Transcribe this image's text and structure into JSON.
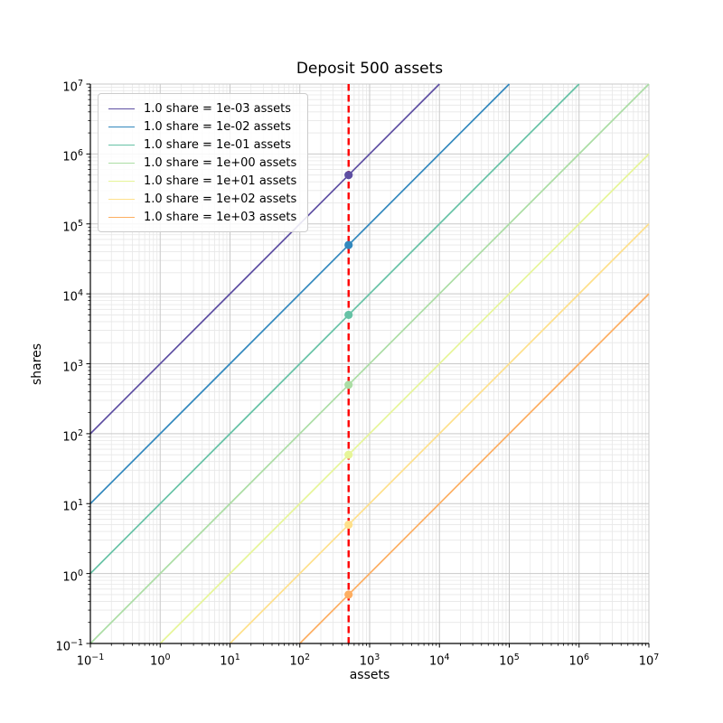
{
  "chart_data": {
    "type": "line",
    "title": "Deposit 500 assets",
    "xlabel": "assets",
    "ylabel": "shares",
    "x_scale": "log",
    "y_scale": "log",
    "xlim": [
      0.1,
      10000000
    ],
    "ylim": [
      0.1,
      10000000
    ],
    "x_tick_exponents": [
      -1,
      0,
      1,
      2,
      3,
      4,
      5,
      6,
      7
    ],
    "y_tick_exponents": [
      -1,
      0,
      1,
      2,
      3,
      4,
      5,
      6,
      7
    ],
    "grid": {
      "major": true,
      "minor": true,
      "major_color": "#c9c9c9",
      "minor_color": "#e7e7e7"
    },
    "legend_position": "upper left",
    "deposit_line": {
      "assets": 500,
      "color": "#ff0000",
      "style": "dashed"
    },
    "series": [
      {
        "label": "1.0 share = 1e-03 assets",
        "assets_per_share": 0.001,
        "color": "#5e4fa2",
        "point": {
          "assets": 500,
          "shares": 500000
        }
      },
      {
        "label": "1.0 share = 1e-02 assets",
        "assets_per_share": 0.01,
        "color": "#3288bd",
        "point": {
          "assets": 500,
          "shares": 50000
        }
      },
      {
        "label": "1.0 share = 1e-01 assets",
        "assets_per_share": 0.1,
        "color": "#66c2a5",
        "point": {
          "assets": 500,
          "shares": 5000
        }
      },
      {
        "label": "1.0 share = 1e+00 assets",
        "assets_per_share": 1,
        "color": "#abdda4",
        "point": {
          "assets": 500,
          "shares": 500
        }
      },
      {
        "label": "1.0 share = 1e+01 assets",
        "assets_per_share": 10,
        "color": "#e6f598",
        "point": {
          "assets": 500,
          "shares": 50
        }
      },
      {
        "label": "1.0 share = 1e+02 assets",
        "assets_per_share": 100,
        "color": "#fee08b",
        "point": {
          "assets": 500,
          "shares": 5
        }
      },
      {
        "label": "1.0 share = 1e+03 assets",
        "assets_per_share": 1000,
        "color": "#fdae61",
        "point": {
          "assets": 500,
          "shares": 0.5
        }
      }
    ]
  }
}
